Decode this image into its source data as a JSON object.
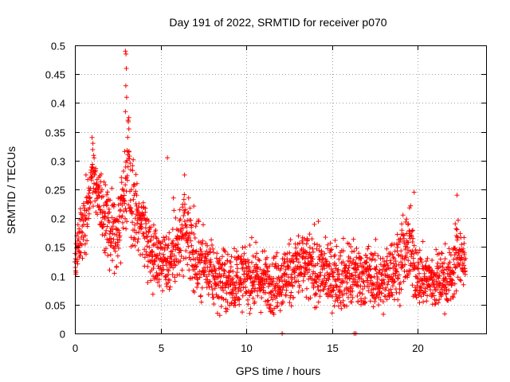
{
  "chart_data": {
    "type": "scatter",
    "title": "Day 191 of 2022, SRMTID for receiver p070",
    "xlabel": "GPS time / hours",
    "ylabel": "SRMTID / TECUs",
    "xlim": [
      0,
      24
    ],
    "ylim": [
      0,
      0.5
    ],
    "grid": true,
    "marker": "+",
    "color": "#ff0000",
    "x_ticks": [
      {
        "value": 0,
        "label": "0"
      },
      {
        "value": 5,
        "label": "5"
      },
      {
        "value": 10,
        "label": "10"
      },
      {
        "value": 15,
        "label": "15"
      },
      {
        "value": 20,
        "label": "20"
      }
    ],
    "y_ticks": [
      {
        "value": 0,
        "label": "0"
      },
      {
        "value": 0.05,
        "label": "0.05"
      },
      {
        "value": 0.1,
        "label": "0.1"
      },
      {
        "value": 0.15,
        "label": "0.15"
      },
      {
        "value": 0.2,
        "label": "0.2"
      },
      {
        "value": 0.25,
        "label": "0.25"
      },
      {
        "value": 0.3,
        "label": "0.3"
      },
      {
        "value": 0.35,
        "label": "0.35"
      },
      {
        "value": 0.4,
        "label": "0.4"
      },
      {
        "value": 0.45,
        "label": "0.45"
      },
      {
        "value": 0.5,
        "label": "0.5"
      }
    ],
    "envelope": {
      "x": [
        0,
        0.5,
        0.8,
        1.0,
        1.5,
        2.0,
        2.5,
        2.9,
        3.1,
        3.5,
        4.0,
        4.5,
        5.0,
        5.5,
        6.0,
        6.5,
        7.0,
        7.5,
        8.0,
        9.0,
        10.0,
        11.0,
        12.0,
        13.0,
        14.0,
        15.0,
        16.0,
        17.0,
        18.0,
        19.0,
        19.5,
        20.0,
        21.0,
        22.0,
        22.4,
        22.8
      ],
      "center": [
        0.13,
        0.19,
        0.24,
        0.28,
        0.22,
        0.18,
        0.18,
        0.25,
        0.28,
        0.2,
        0.19,
        0.14,
        0.13,
        0.13,
        0.15,
        0.17,
        0.13,
        0.12,
        0.1,
        0.09,
        0.1,
        0.09,
        0.09,
        0.12,
        0.11,
        0.1,
        0.1,
        0.1,
        0.09,
        0.13,
        0.15,
        0.1,
        0.09,
        0.1,
        0.15,
        0.11
      ],
      "spread": [
        0.04,
        0.06,
        0.06,
        0.04,
        0.06,
        0.07,
        0.06,
        0.08,
        0.12,
        0.06,
        0.06,
        0.05,
        0.05,
        0.07,
        0.06,
        0.07,
        0.07,
        0.05,
        0.05,
        0.05,
        0.05,
        0.05,
        0.05,
        0.06,
        0.06,
        0.05,
        0.06,
        0.05,
        0.05,
        0.06,
        0.07,
        0.05,
        0.05,
        0.05,
        0.06,
        0.05
      ]
    },
    "series": [
      {
        "name": "SRMTID",
        "x_range": [
          0,
          22.8
        ],
        "sample_count": 2200,
        "notable_points": [
          {
            "x": 2.95,
            "y": 0.49
          },
          {
            "x": 2.98,
            "y": 0.485
          },
          {
            "x": 3.0,
            "y": 0.46
          },
          {
            "x": 2.97,
            "y": 0.43
          },
          {
            "x": 3.02,
            "y": 0.41
          },
          {
            "x": 2.95,
            "y": 0.385
          },
          {
            "x": 3.1,
            "y": 0.37
          },
          {
            "x": 3.15,
            "y": 0.355
          },
          {
            "x": 1.0,
            "y": 0.34
          },
          {
            "x": 1.05,
            "y": 0.33
          },
          {
            "x": 5.4,
            "y": 0.305
          },
          {
            "x": 6.4,
            "y": 0.275
          },
          {
            "x": 19.8,
            "y": 0.245
          },
          {
            "x": 22.3,
            "y": 0.24
          },
          {
            "x": 12.1,
            "y": 0.0
          },
          {
            "x": 16.3,
            "y": 0.0
          },
          {
            "x": 16.4,
            "y": 0.0
          }
        ]
      }
    ]
  }
}
